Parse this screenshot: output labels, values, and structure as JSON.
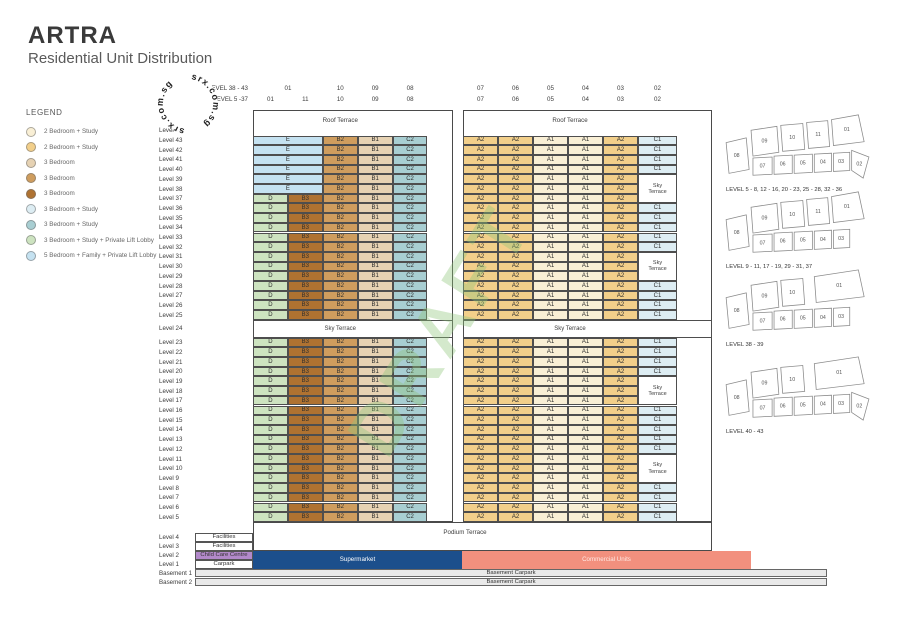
{
  "title": "ARTRA",
  "subtitle": "Residential Unit Distribution",
  "watermarks": {
    "circle_text": "srx.com.sg",
    "draft": "DRAFT"
  },
  "legend": {
    "heading": "LEGEND",
    "items": [
      {
        "label": "2 Bedroom + Study",
        "unit": "A1",
        "color": "#f9efd5"
      },
      {
        "label": "2 Bedroom + Study",
        "unit": "A2",
        "color": "#f2cf8a"
      },
      {
        "label": "3 Bedroom",
        "unit": "B1",
        "color": "#e6d2b3"
      },
      {
        "label": "3 Bedroom",
        "unit": "B2",
        "color": "#cf9d5e"
      },
      {
        "label": "3 Bedroom",
        "unit": "B3",
        "color": "#af7231"
      },
      {
        "label": "3 Bedroom + Study",
        "unit": "C1",
        "color": "#ddedf3"
      },
      {
        "label": "3 Bedroom + Study",
        "unit": "C2",
        "color": "#a8ced2"
      },
      {
        "label": "3 Bedroom + Study + Private Lift Lobby",
        "unit": "D",
        "color": "#cde3c0"
      },
      {
        "label": "5 Bedroom + Family + Private Lift Lobby",
        "unit": "E",
        "color": "#c5e2f1"
      }
    ]
  },
  "unit_colors": {
    "A1": "#f9efd5",
    "A2": "#f2cf8a",
    "B1": "#e6d2b3",
    "B2": "#cf9d5e",
    "B3": "#af7231",
    "C1": "#ddedf3",
    "C2": "#a8ced2",
    "D": "#cde3c0",
    "E": "#c5e2f1"
  },
  "grid": {
    "header_rows": [
      {
        "label": "LEVEL 38 - 43",
        "left": [
          "01",
          "10",
          "09",
          "08"
        ],
        "right": [
          "07",
          "06",
          "05",
          "04",
          "03",
          "02"
        ]
      },
      {
        "label": "LEVEL 5 -37",
        "left": [
          "01",
          "11",
          "10",
          "09",
          "08"
        ],
        "right": [
          "07",
          "06",
          "05",
          "04",
          "03",
          "02"
        ]
      }
    ],
    "roof_label": "Roof Terrace",
    "sky_label": "Sky Terrace",
    "roof_level_label": "Level 44",
    "sky_level_label": "Level 24",
    "level_prefix": "Level ",
    "upper_levels": [
      43,
      42,
      41,
      40,
      39,
      38,
      37,
      36,
      35,
      34,
      33,
      32,
      31,
      30,
      29,
      28,
      27,
      26,
      25
    ],
    "lower_levels": [
      23,
      22,
      21,
      20,
      19,
      18,
      17,
      16,
      15,
      14,
      13,
      12,
      11,
      10,
      9,
      8,
      7,
      6,
      5
    ],
    "e_levels": [
      43,
      42,
      41,
      40,
      39,
      38
    ],
    "left_row_e": [
      "E",
      "B2",
      "B1",
      "C2"
    ],
    "left_row_d": [
      "D",
      "B3",
      "B2",
      "B1",
      "C2"
    ],
    "right_row": [
      "A2",
      "A2",
      "A1",
      "A1",
      "A2"
    ],
    "col02_unit": "C1",
    "col02_sequence": [
      {
        "kind": "cells",
        "levels": [
          43,
          42,
          41,
          40
        ]
      },
      {
        "kind": "terrace",
        "from": 39,
        "to": 37
      },
      {
        "kind": "cells",
        "levels": [
          36,
          35,
          34,
          33,
          32
        ]
      },
      {
        "kind": "terrace",
        "from": 31,
        "to": 29
      },
      {
        "kind": "cells",
        "levels": [
          28,
          27,
          26,
          25
        ]
      },
      {
        "kind": "cells",
        "levels": [
          23,
          22,
          21,
          20
        ]
      },
      {
        "kind": "terrace",
        "from": 19,
        "to": 17
      },
      {
        "kind": "cells",
        "levels": [
          16,
          15,
          14,
          13,
          12
        ]
      },
      {
        "kind": "terrace",
        "from": 11,
        "to": 9
      },
      {
        "kind": "cells",
        "levels": [
          8,
          7,
          6,
          5
        ]
      }
    ]
  },
  "bottom": {
    "podium_label": "Podium Terrace",
    "rows": [
      {
        "label": "Level 4",
        "box": "Facilities",
        "color": "#ffffff"
      },
      {
        "label": "Level 3",
        "box": "Facilities",
        "color": "#ffffff"
      },
      {
        "label": "Level 2",
        "box": "Child Care Centre",
        "color": "#b289ca"
      },
      {
        "label": "Level 1",
        "box": "Carpark",
        "color": "#ffffff"
      },
      {
        "label": "Basement 1",
        "bar": "Basement Carpark"
      },
      {
        "label": "Basement 2",
        "bar": "Basement Carpark"
      }
    ],
    "supermarket": {
      "label": "Supermarket",
      "color": "#1c4f8c",
      "text_color": "#ffffff"
    },
    "commercial": {
      "label": "Commercial Units",
      "color": "#f2907e",
      "text_color": "#ffe9e4"
    },
    "basement_color": "#e9e9e9"
  },
  "floor_plans": [
    {
      "caption": "LEVEL 5 - 8, 12 - 16, 20 - 23, 25 - 28, 32 - 36",
      "left_unit": "08",
      "top_units": [
        "09",
        "10",
        "11",
        "01"
      ],
      "bottom_units": [
        "07",
        "06",
        "05",
        "04",
        "03",
        "02"
      ]
    },
    {
      "caption": "LEVEL 9 - 11, 17 - 19, 29 - 31, 37",
      "left_unit": "08",
      "top_units": [
        "09",
        "10",
        "11",
        "01"
      ],
      "bottom_units": [
        "07",
        "06",
        "05",
        "04",
        "03"
      ]
    },
    {
      "caption": "LEVEL 38 - 39",
      "left_unit": "08",
      "top_units": [
        "09",
        "10",
        "01"
      ],
      "bottom_units": [
        "07",
        "06",
        "05",
        "04",
        "03"
      ]
    },
    {
      "caption": "LEVEL 40 - 43",
      "left_unit": "08",
      "top_units": [
        "09",
        "10",
        "01"
      ],
      "bottom_units": [
        "07",
        "06",
        "05",
        "04",
        "03",
        "02"
      ]
    }
  ]
}
